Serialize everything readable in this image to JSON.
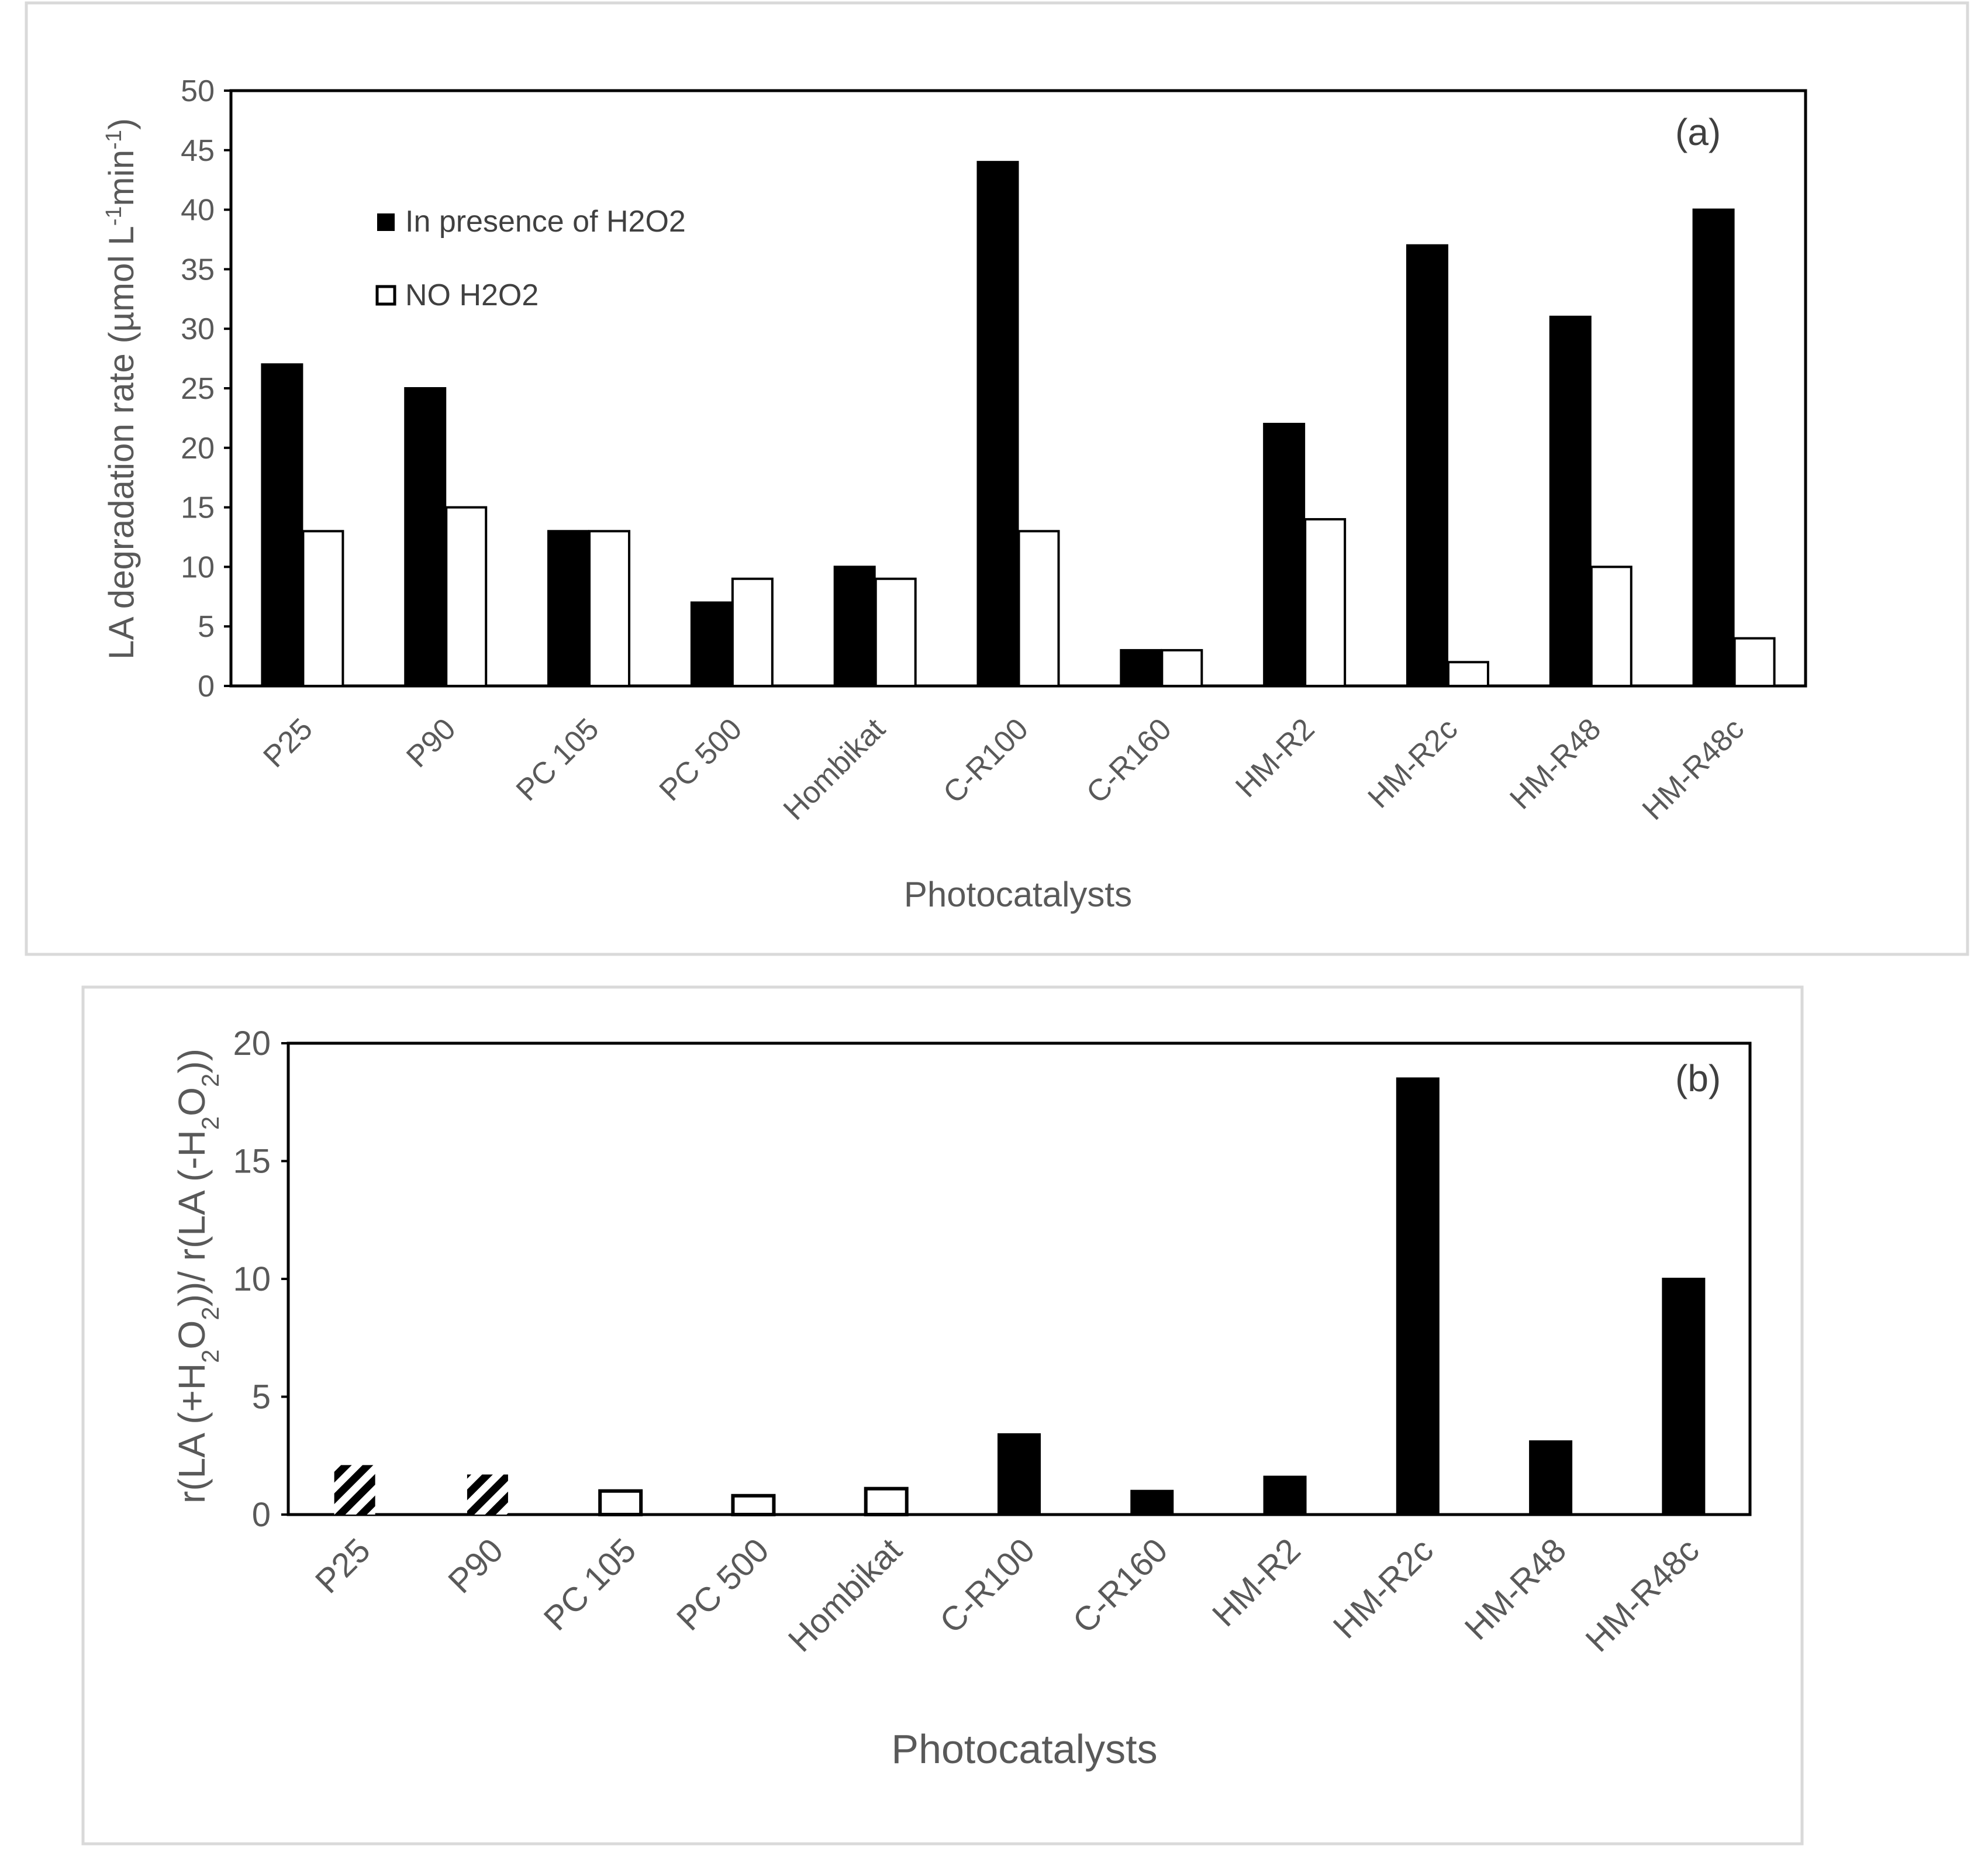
{
  "chart_data": [
    {
      "panel": "(a)",
      "type": "bar",
      "categories": [
        "P25",
        "P90",
        "PC 105",
        "PC 500",
        "Hombikat",
        "C-R100",
        "C-R160",
        "HM-R2",
        "HM-R2c",
        "HM-R48",
        "HM-R48c"
      ],
      "series": [
        {
          "name": "In presence of H2O2",
          "fill": "#000000",
          "values": [
            27,
            25,
            13,
            7,
            10,
            44,
            3,
            22,
            37,
            31,
            40
          ]
        },
        {
          "name": "NO H2O2",
          "fill": "#ffffff",
          "values": [
            13,
            15,
            13,
            9,
            9,
            13,
            3,
            14,
            2,
            10,
            4
          ]
        }
      ],
      "ylabel": "LA degradation rate (µmol L-1min-1)",
      "xlabel": "Photocatalysts",
      "ylim": [
        0,
        50
      ],
      "yticks": [
        0,
        5,
        10,
        15,
        20,
        25,
        30,
        35,
        40,
        45,
        50
      ],
      "grid": false,
      "legend": "top-left"
    },
    {
      "panel": "(b)",
      "type": "bar",
      "categories": [
        "P25",
        "P90",
        "PC 105",
        "PC 500",
        "Hombikat",
        "C-R100",
        "C-R160",
        "HM-R2",
        "HM-R2c",
        "HM-R48",
        "HM-R48c"
      ],
      "values": [
        2.1,
        1.7,
        1.0,
        0.8,
        1.1,
        3.4,
        1.0,
        1.6,
        18.5,
        3.1,
        10.0
      ],
      "bar_styles": [
        "hatched",
        "hatched",
        "open",
        "open",
        "open",
        "solid",
        "solid",
        "solid",
        "solid",
        "solid",
        "solid"
      ],
      "ylabel": "r(LA (+H2O2))/ r(LA (-H2O2))",
      "xlabel": "Photocatalysts",
      "ylim": [
        0,
        20
      ],
      "yticks": [
        0,
        5,
        10,
        15,
        20
      ],
      "grid": false
    }
  ]
}
